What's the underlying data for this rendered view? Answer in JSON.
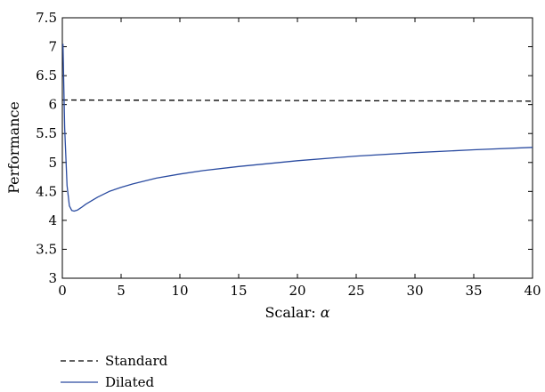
{
  "chart_data": {
    "type": "line",
    "title": "",
    "xlabel": "Scalar: ",
    "xlabel_symbol": "α",
    "ylabel": "Performance",
    "xlim": [
      0,
      40
    ],
    "ylim": [
      3,
      7.5
    ],
    "xticks": [
      0,
      5,
      10,
      15,
      20,
      25,
      30,
      35,
      40
    ],
    "xtick_labels": [
      "0",
      "5",
      "10",
      "15",
      "20",
      "25",
      "30",
      "35",
      "40"
    ],
    "yticks": [
      3,
      3.5,
      4,
      4.5,
      5,
      5.5,
      6,
      6.5,
      7,
      7.5
    ],
    "ytick_labels": [
      "3",
      "3.5",
      "4",
      "4.5",
      "5",
      "5.5",
      "6",
      "6.5",
      "7",
      "7.5"
    ],
    "grid": false,
    "legend_position": "below",
    "series": [
      {
        "name": "Standard",
        "style": "dashed",
        "color": "#000000",
        "x": [
          0,
          40
        ],
        "y": [
          6.08,
          6.06
        ]
      },
      {
        "name": "Dilated",
        "style": "solid",
        "color": "#2a4ba0",
        "x": [
          0.05,
          0.2,
          0.4,
          0.6,
          0.8,
          1,
          1.3,
          1.6,
          2,
          3,
          4,
          5,
          6,
          8,
          10,
          12,
          15,
          20,
          25,
          30,
          35,
          40
        ],
        "y": [
          7.05,
          5.6,
          4.6,
          4.25,
          4.17,
          4.16,
          4.18,
          4.22,
          4.28,
          4.4,
          4.5,
          4.57,
          4.63,
          4.73,
          4.8,
          4.86,
          4.93,
          5.03,
          5.11,
          5.17,
          5.22,
          5.26
        ]
      }
    ]
  }
}
